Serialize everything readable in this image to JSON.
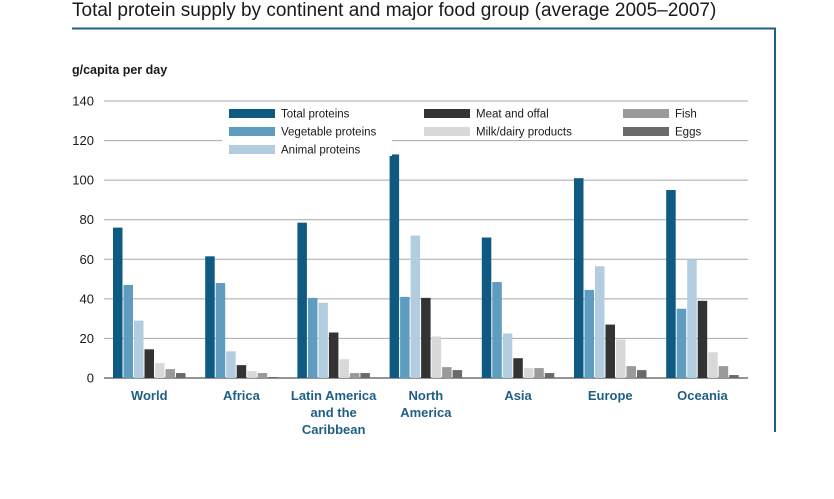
{
  "chart_data": {
    "type": "bar",
    "title": "Total protein supply by continent and major food group (average 2005–2007)",
    "ylabel": "g/capita per day",
    "xlabel": "",
    "ylim": [
      0,
      140
    ],
    "yticks": [
      0,
      20,
      40,
      60,
      80,
      100,
      120,
      140
    ],
    "grid": true,
    "legend_position": "top",
    "categories": [
      [
        "World"
      ],
      [
        "Africa"
      ],
      [
        "Latin America",
        "and the",
        "Caribbean"
      ],
      [
        "North",
        "America"
      ],
      [
        "Asia"
      ],
      [
        "Europe"
      ],
      [
        "Oceania"
      ]
    ],
    "series": [
      {
        "name": "Total proteins",
        "color": "#0e5a82",
        "values": [
          76,
          61.5,
          78.5,
          113,
          71,
          101,
          95
        ]
      },
      {
        "name": "Vegetable proteins",
        "color": "#5e9dc0",
        "values": [
          47,
          48,
          40.5,
          41,
          48.5,
          44.5,
          35
        ]
      },
      {
        "name": "Animal proteins",
        "color": "#b3cde0",
        "values": [
          29,
          13.5,
          38,
          72,
          22.5,
          56.5,
          60
        ]
      },
      {
        "name": "Meat and offal",
        "color": "#333333",
        "values": [
          14.5,
          6.5,
          23,
          40.5,
          10,
          27,
          39
        ]
      },
      {
        "name": "Milk/dairy products",
        "color": "#d8d8d8",
        "values": [
          7.5,
          3.5,
          9.5,
          21,
          5,
          19.5,
          13
        ]
      },
      {
        "name": "Fish",
        "color": "#9a9a9a",
        "values": [
          4.5,
          2.5,
          2.5,
          5.5,
          5,
          6,
          6
        ]
      },
      {
        "name": "Eggs",
        "color": "#6a6a6a",
        "values": [
          2.5,
          0.5,
          2.5,
          4,
          2.5,
          4,
          1.5
        ]
      }
    ],
    "legend_rows": [
      [
        0,
        3,
        5
      ],
      [
        1,
        4,
        6
      ],
      [
        2
      ]
    ]
  }
}
